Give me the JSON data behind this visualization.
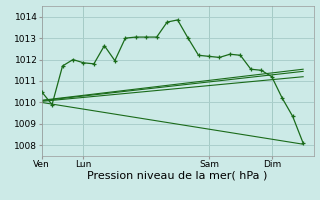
{
  "title": "Pression niveau de la mer( hPa )",
  "bg_color": "#cceae7",
  "grid_color": "#aacfcc",
  "line_color": "#1a6b1a",
  "ylim": [
    1007.5,
    1014.5
  ],
  "yticks": [
    1008,
    1009,
    1010,
    1011,
    1012,
    1013,
    1014
  ],
  "xtick_labels": [
    "Ven",
    "Lun",
    "Sam",
    "Dim"
  ],
  "xtick_positions": [
    0,
    2,
    8,
    11
  ],
  "vlines": [
    2,
    8,
    11
  ],
  "xlim": [
    0,
    13
  ],
  "main_line_x": [
    0,
    0.5,
    1,
    1.5,
    2,
    2.5,
    3,
    3.5,
    4,
    4.5,
    5,
    5.5,
    6,
    6.5,
    7,
    7.5,
    8,
    8.5,
    9,
    9.5,
    10,
    10.5,
    11,
    11.5,
    12,
    12.5
  ],
  "main_line_y": [
    1010.5,
    1009.9,
    1011.7,
    1012.0,
    1011.85,
    1011.8,
    1012.65,
    1011.95,
    1013.0,
    1013.05,
    1013.05,
    1013.05,
    1013.75,
    1013.85,
    1013.0,
    1012.2,
    1012.15,
    1012.1,
    1012.25,
    1012.2,
    1011.55,
    1011.5,
    1011.2,
    1010.2,
    1009.35,
    1008.1
  ],
  "trend_lines": [
    {
      "x": [
        0,
        12.5
      ],
      "y": [
        1010.1,
        1011.55
      ]
    },
    {
      "x": [
        0,
        12.5
      ],
      "y": [
        1010.05,
        1011.2
      ]
    },
    {
      "x": [
        0,
        12.5
      ],
      "y": [
        1010.0,
        1008.05
      ]
    },
    {
      "x": [
        0,
        12.5
      ],
      "y": [
        1010.08,
        1011.45
      ]
    }
  ],
  "tick_fontsize": 6.5,
  "xlabel_fontsize": 8
}
